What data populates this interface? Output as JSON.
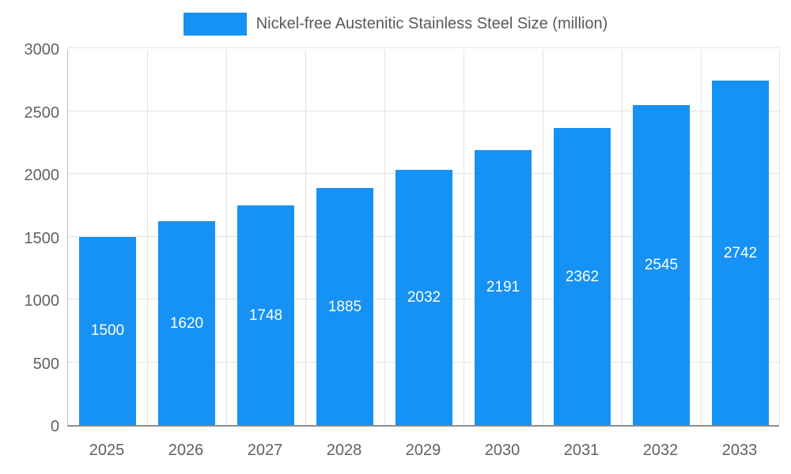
{
  "chart_data": {
    "type": "bar",
    "title": "Nickel-free Austenitic Stainless Steel Size (million)",
    "categories": [
      "2025",
      "2026",
      "2027",
      "2028",
      "2029",
      "2030",
      "2031",
      "2032",
      "2033"
    ],
    "values": [
      1500,
      1620,
      1748,
      1885,
      2032,
      2191,
      2362,
      2545,
      2742
    ],
    "xlabel": "",
    "ylabel": "",
    "ylim": [
      0,
      3000
    ],
    "yticks": [
      0,
      500,
      1000,
      1500,
      2000,
      2500,
      3000
    ],
    "grid": true,
    "legend_position": "top",
    "colors": {
      "bar": "#1691f4",
      "bar_value_label": "#ffffff",
      "legend_text": "#595959",
      "axis_text": "#616161",
      "gridline": "#e3e3e3"
    }
  }
}
